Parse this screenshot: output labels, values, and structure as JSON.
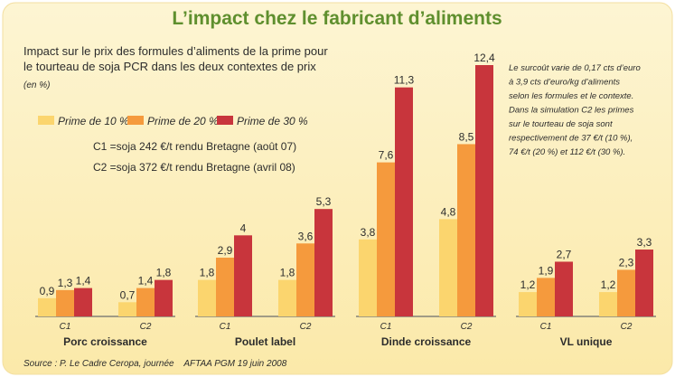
{
  "chart_data": {
    "type": "bar",
    "title": "L’impact chez le fabricant d’aliments",
    "subtitle_lines": [
      "Impact sur le prix des formules d’aliments de la prime pour",
      "le tourteau de soja PCR dans les deux contextes de prix"
    ],
    "unit": "(en %)",
    "series": [
      {
        "name": "Prime de 10 %",
        "color": "#fbd56e"
      },
      {
        "name": "Prime de 20 %",
        "color": "#f59a3d"
      },
      {
        "name": "Prime de 30 %",
        "color": "#c8353c"
      }
    ],
    "groups": [
      {
        "name": "Porc croissance",
        "bars": [
          {
            "context": "C1",
            "values": [
              0.9,
              1.3,
              1.4
            ],
            "labels": [
              "0,9",
              "1,3",
              "1,4"
            ]
          },
          {
            "context": "C2",
            "values": [
              0.7,
              1.4,
              1.8
            ],
            "labels": [
              "0,7",
              "1,4",
              "1,8"
            ]
          }
        ]
      },
      {
        "name": "Poulet label",
        "bars": [
          {
            "context": "C1",
            "values": [
              1.8,
              2.9,
              4
            ],
            "labels": [
              "1,8",
              "2,9",
              "4"
            ]
          },
          {
            "context": "C2",
            "values": [
              1.8,
              3.6,
              5.3
            ],
            "labels": [
              "1,8",
              "3,6",
              "5,3"
            ]
          }
        ]
      },
      {
        "name": "Dinde croissance",
        "bars": [
          {
            "context": "C1",
            "values": [
              3.8,
              7.6,
              11.3
            ],
            "labels": [
              "3,8",
              "7,6",
              "11,3"
            ]
          },
          {
            "context": "C2",
            "values": [
              4.8,
              8.5,
              12.4
            ],
            "labels": [
              "4,8",
              "8,5",
              "12,4"
            ]
          }
        ]
      },
      {
        "name": "VL unique",
        "bars": [
          {
            "context": "C1",
            "values": [
              1.2,
              1.9,
              2.7
            ],
            "labels": [
              "1,2",
              "1,9",
              "2,7"
            ]
          },
          {
            "context": "C2",
            "values": [
              1.2,
              2.3,
              3.3
            ],
            "labels": [
              "1,2",
              "2,3",
              "3,3"
            ]
          }
        ]
      }
    ],
    "context_notes": [
      "C1 =soja 242 €/t rendu Bretagne (août 07)",
      "C2 =soja 372 €/t rendu Bretagne (avril 08)"
    ],
    "annotation_lines": [
      "Le surcoût varie de 0,17 cts d’euro",
      "à 3,9 cts d’euro/kg d’aliments",
      "selon les formules et le contexte.",
      "Dans la simulation C2 les primes",
      "sur le tourteau de soja sont",
      "respectivement de 37 €/t (10 %),",
      "74 €/t (20 %) et 112 €/t (30 %)."
    ],
    "source": "Source : P. Le Cadre Ceropa, journée    AFTAA PGM 19 juin 2008",
    "colors": {
      "background": "#fdf1c4",
      "title": "#5f8f2e",
      "axis_line": "#6b6b6b",
      "text": "#2c2c2c"
    }
  }
}
